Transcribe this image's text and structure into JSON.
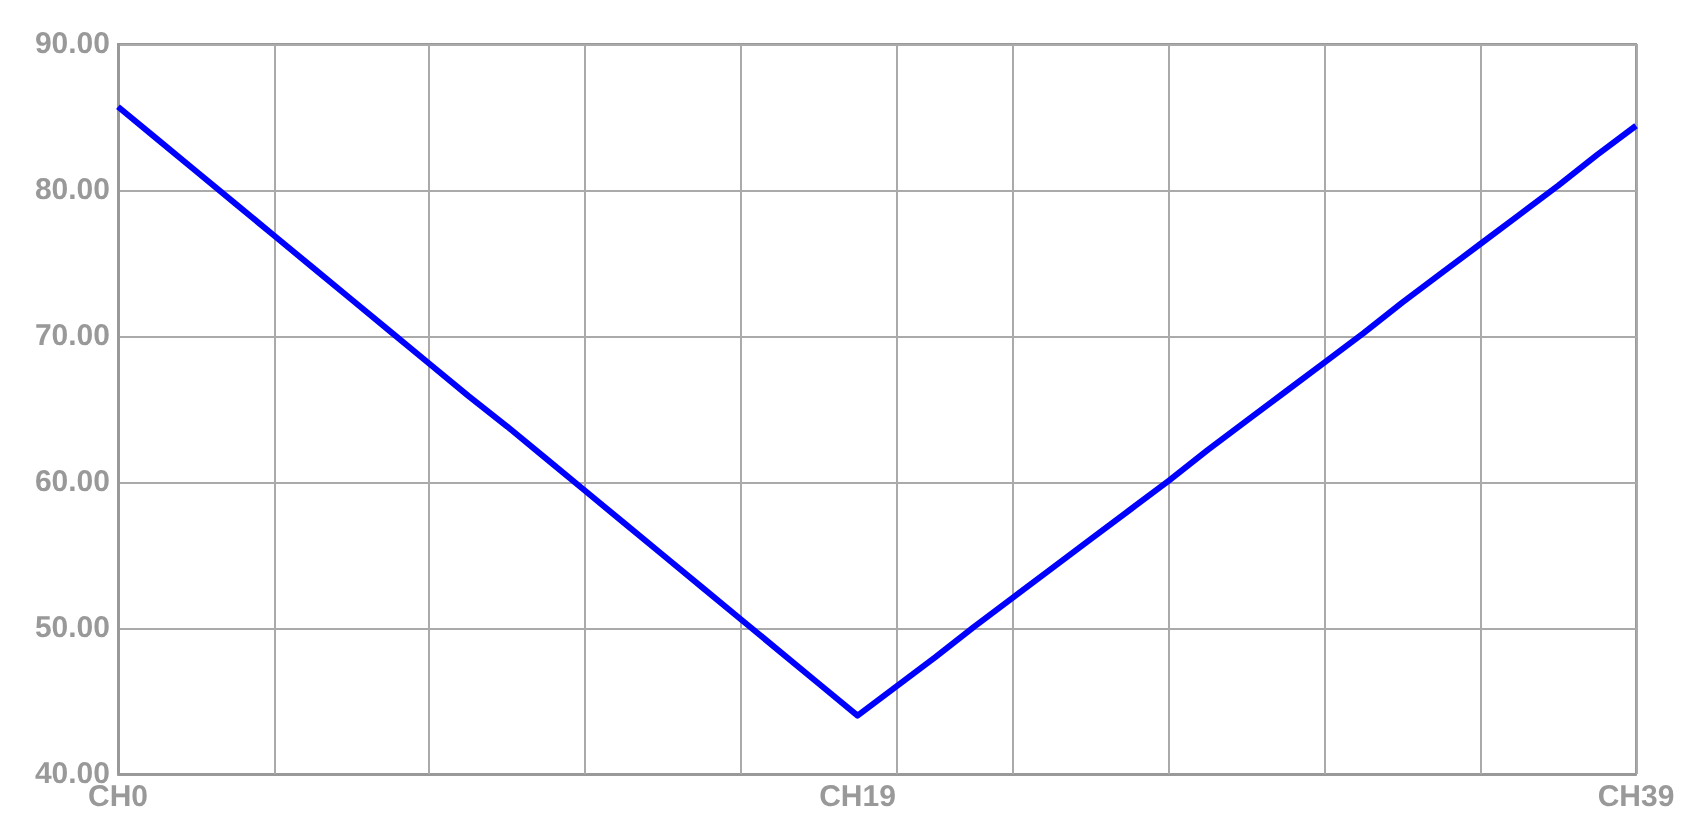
{
  "chart_data": {
    "type": "line",
    "categories": [
      "CH0",
      null,
      null,
      null,
      null,
      null,
      null,
      null,
      null,
      null,
      null,
      null,
      null,
      null,
      null,
      null,
      null,
      null,
      null,
      "CH19",
      null,
      null,
      null,
      null,
      null,
      null,
      null,
      null,
      null,
      null,
      null,
      null,
      null,
      null,
      null,
      null,
      null,
      null,
      null,
      "CH39"
    ],
    "series": [
      {
        "color": "#0000ff",
        "values": [
          85.7,
          83.5,
          81.3,
          79.1,
          76.9,
          74.7,
          72.5,
          70.3,
          68.1,
          65.9,
          63.8,
          61.6,
          59.4,
          57.2,
          55.0,
          52.8,
          50.6,
          48.4,
          46.2,
          44.0,
          46.0,
          48.0,
          50.1,
          52.1,
          54.1,
          56.1,
          58.1,
          60.1,
          62.2,
          64.2,
          66.2,
          68.2,
          70.2,
          72.3,
          74.3,
          76.3,
          78.3,
          80.3,
          82.4,
          84.4
        ]
      }
    ],
    "ylim": [
      40,
      90
    ],
    "yticks": [
      {
        "value": 40,
        "label": "40.00"
      },
      {
        "value": 50,
        "label": "50.00"
      },
      {
        "value": 60,
        "label": "60.00"
      },
      {
        "value": 70,
        "label": "70.00"
      },
      {
        "value": 80,
        "label": "80.00"
      },
      {
        "value": 90,
        "label": "90.00"
      }
    ],
    "grid": true,
    "marker": "none",
    "line_style": "solid"
  }
}
